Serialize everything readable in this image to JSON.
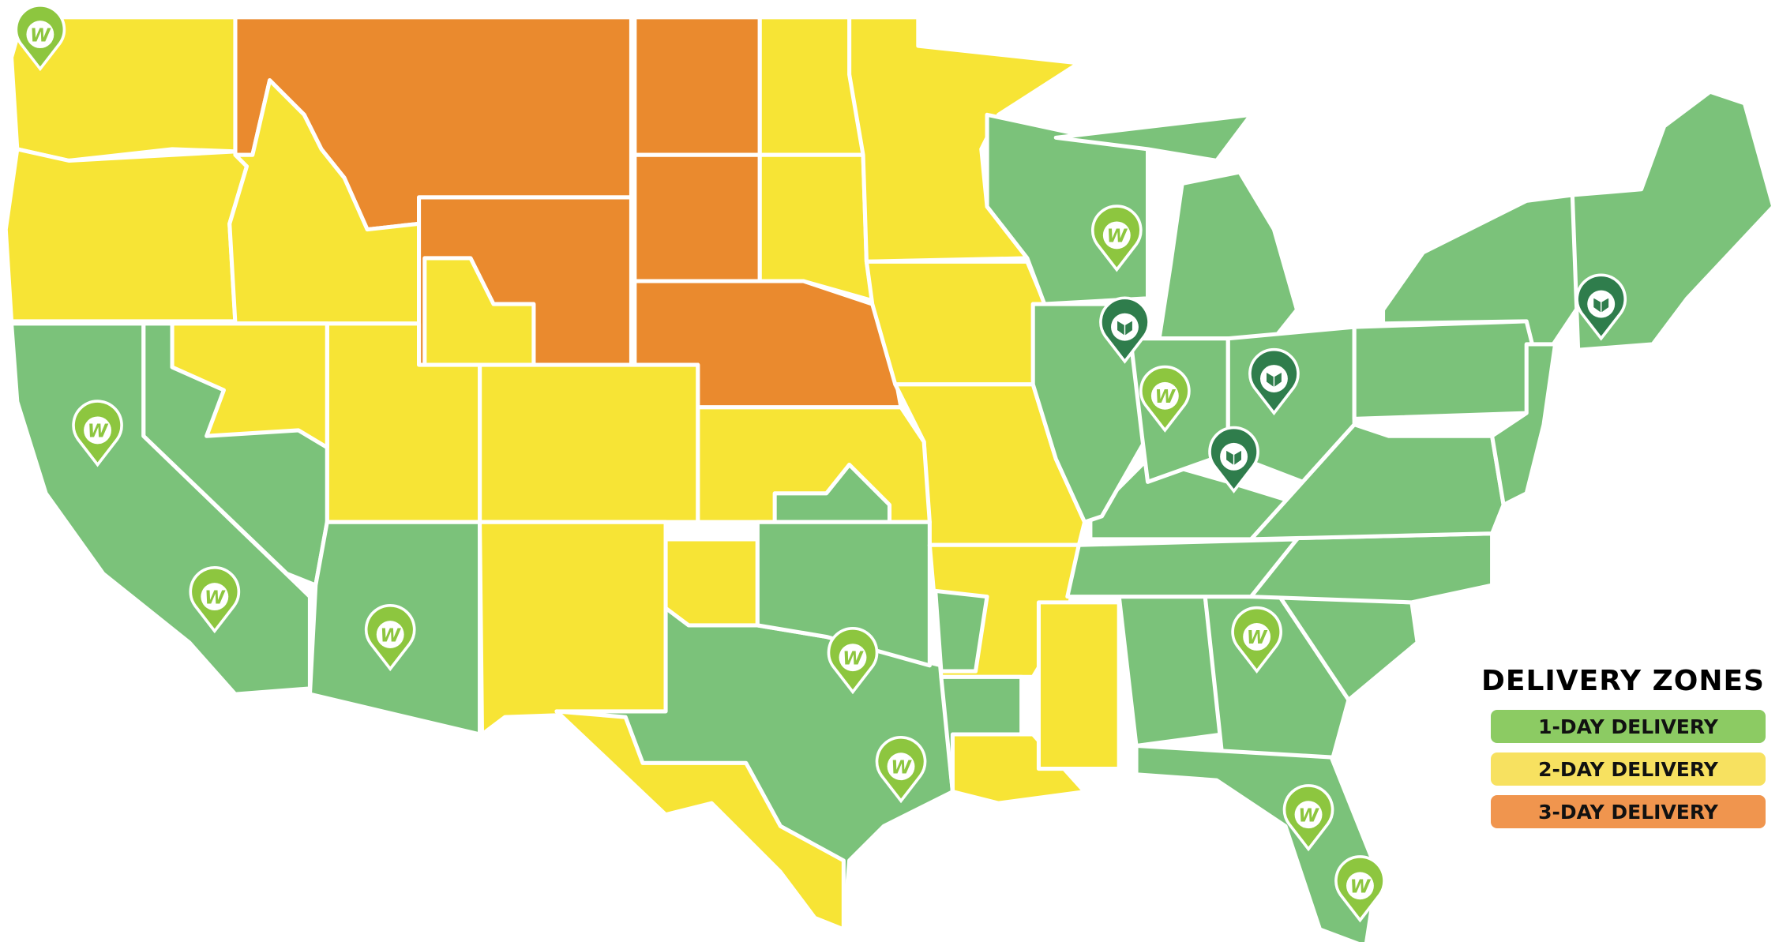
{
  "legend": {
    "title": "DELIVERY ZONES",
    "items": [
      {
        "label": "1-DAY DELIVERY",
        "color": "#8ccb63"
      },
      {
        "label": "2-DAY DELIVERY",
        "color": "#f7e160"
      },
      {
        "label": "3-DAY DELIVERY",
        "color": "#f0954e"
      }
    ]
  },
  "zone_colors": {
    "one_day": "#7bc27a",
    "two_day": "#f7e435",
    "three_day": "#ea8a2e"
  },
  "pins": {
    "warehouse_w": {
      "icon": "w-logo-pin-icon",
      "color": "#8dc63f",
      "letter": "W"
    },
    "partner_box": {
      "icon": "box-pin-icon",
      "color": "#2f7d4c"
    }
  }
}
